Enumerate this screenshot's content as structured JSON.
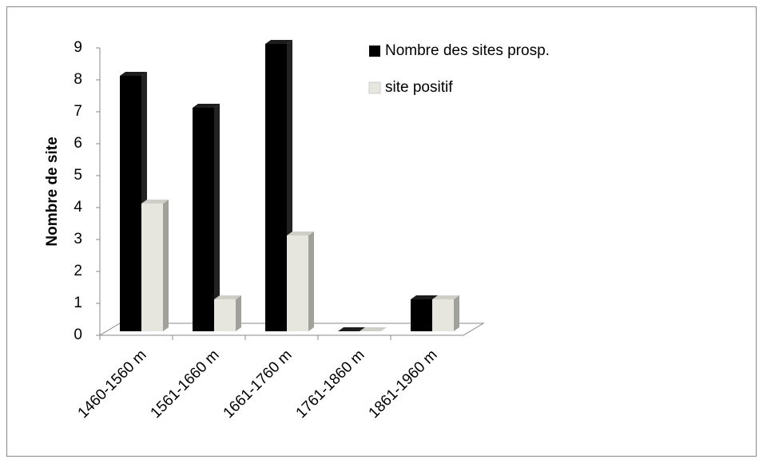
{
  "chart_data": {
    "type": "bar3d",
    "y_label": "Nombre de site",
    "categories": [
      "1460-1560 m",
      "1561-1660 m",
      "1661-1760 m",
      "1761-1860 m",
      "1861-1960 m"
    ],
    "series": [
      {
        "name": "Nombre des sites prosp.",
        "color": "#000000",
        "values": [
          8,
          7,
          9,
          0,
          1
        ]
      },
      {
        "name": "site positif",
        "color": "#e6e6de",
        "values": [
          4,
          1,
          3,
          0,
          1
        ]
      }
    ],
    "ylim": [
      0,
      9
    ],
    "yticks": [
      0,
      1,
      2,
      3,
      4,
      5,
      6,
      7,
      8,
      9
    ],
    "legend": "top-right"
  }
}
